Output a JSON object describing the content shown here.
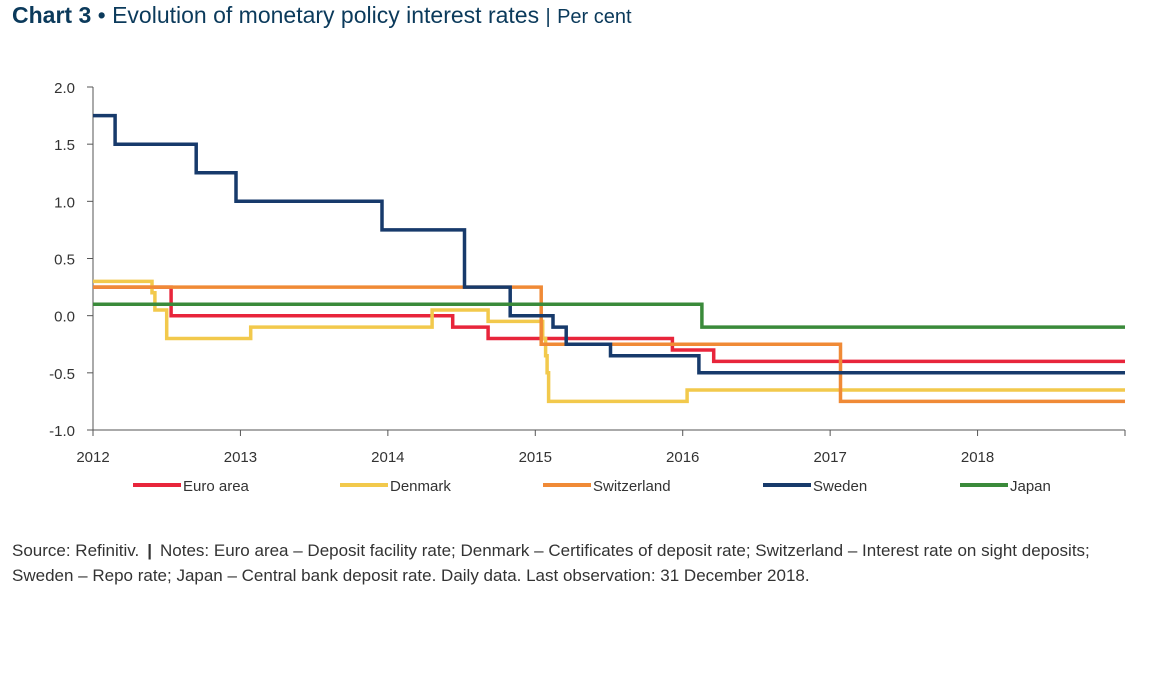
{
  "title": {
    "chart_number": "Chart 3",
    "separator": "•",
    "text": "Evolution of  monetary policy interest rates",
    "divider": "|",
    "unit": "Per cent"
  },
  "source": {
    "source_text": "Source: Refinitiv.",
    "divider": "|",
    "notes_text": "Notes: Euro area – Deposit facility rate; Denmark – Certificates of deposit rate; Switzerland – Interest rate on sight deposits; Sweden – Repo rate; Japan – Central bank deposit rate. Daily data. Last observation: 31 December 2018."
  },
  "chart_data": {
    "type": "line",
    "title": "",
    "xlabel": "",
    "ylabel": "",
    "xlim": [
      2012,
      2019
    ],
    "ylim": [
      -1.0,
      2.0
    ],
    "xticks": [
      "2012",
      "2013",
      "2014",
      "2015",
      "2016",
      "2017",
      "2018"
    ],
    "yticks": [
      "2.0",
      "1.5",
      "1.0",
      "0.5",
      "0.0",
      "-0.5",
      "-1.0"
    ],
    "grid": false,
    "legend_position": "bottom",
    "series": [
      {
        "name": "Euro area",
        "color": "#e8253b",
        "step": true,
        "points": [
          [
            2012.0,
            0.25
          ],
          [
            2012.53,
            0.0
          ],
          [
            2014.44,
            -0.1
          ],
          [
            2014.68,
            -0.2
          ],
          [
            2015.93,
            -0.3
          ],
          [
            2016.21,
            -0.4
          ],
          [
            2019.0,
            -0.4
          ]
        ]
      },
      {
        "name": "Denmark",
        "color": "#f2c94c",
        "step": true,
        "points": [
          [
            2012.0,
            0.3
          ],
          [
            2012.4,
            0.2
          ],
          [
            2012.42,
            0.05
          ],
          [
            2012.5,
            -0.2
          ],
          [
            2013.07,
            -0.1
          ],
          [
            2014.3,
            0.05
          ],
          [
            2014.68,
            -0.05
          ],
          [
            2015.05,
            -0.2
          ],
          [
            2015.07,
            -0.35
          ],
          [
            2015.08,
            -0.5
          ],
          [
            2015.09,
            -0.75
          ],
          [
            2016.03,
            -0.65
          ],
          [
            2019.0,
            -0.65
          ]
        ]
      },
      {
        "name": "Switzerland",
        "color": "#f08a36",
        "step": true,
        "points": [
          [
            2012.0,
            0.25
          ],
          [
            2015.04,
            -0.25
          ],
          [
            2017.07,
            -0.75
          ],
          [
            2019.0,
            -0.75
          ]
        ]
      },
      {
        "name": "Sweden",
        "color": "#173a6b",
        "step": true,
        "points": [
          [
            2012.0,
            1.75
          ],
          [
            2012.15,
            1.5
          ],
          [
            2012.7,
            1.25
          ],
          [
            2012.97,
            1.0
          ],
          [
            2013.96,
            0.75
          ],
          [
            2014.52,
            0.25
          ],
          [
            2014.83,
            0.0
          ],
          [
            2015.12,
            -0.1
          ],
          [
            2015.21,
            -0.25
          ],
          [
            2015.51,
            -0.35
          ],
          [
            2016.11,
            -0.5
          ],
          [
            2019.0,
            -0.5
          ]
        ]
      },
      {
        "name": "Japan",
        "color": "#3a8a3a",
        "step": true,
        "points": [
          [
            2012.0,
            0.1
          ],
          [
            2016.13,
            -0.1
          ],
          [
            2019.0,
            -0.1
          ]
        ]
      }
    ]
  }
}
